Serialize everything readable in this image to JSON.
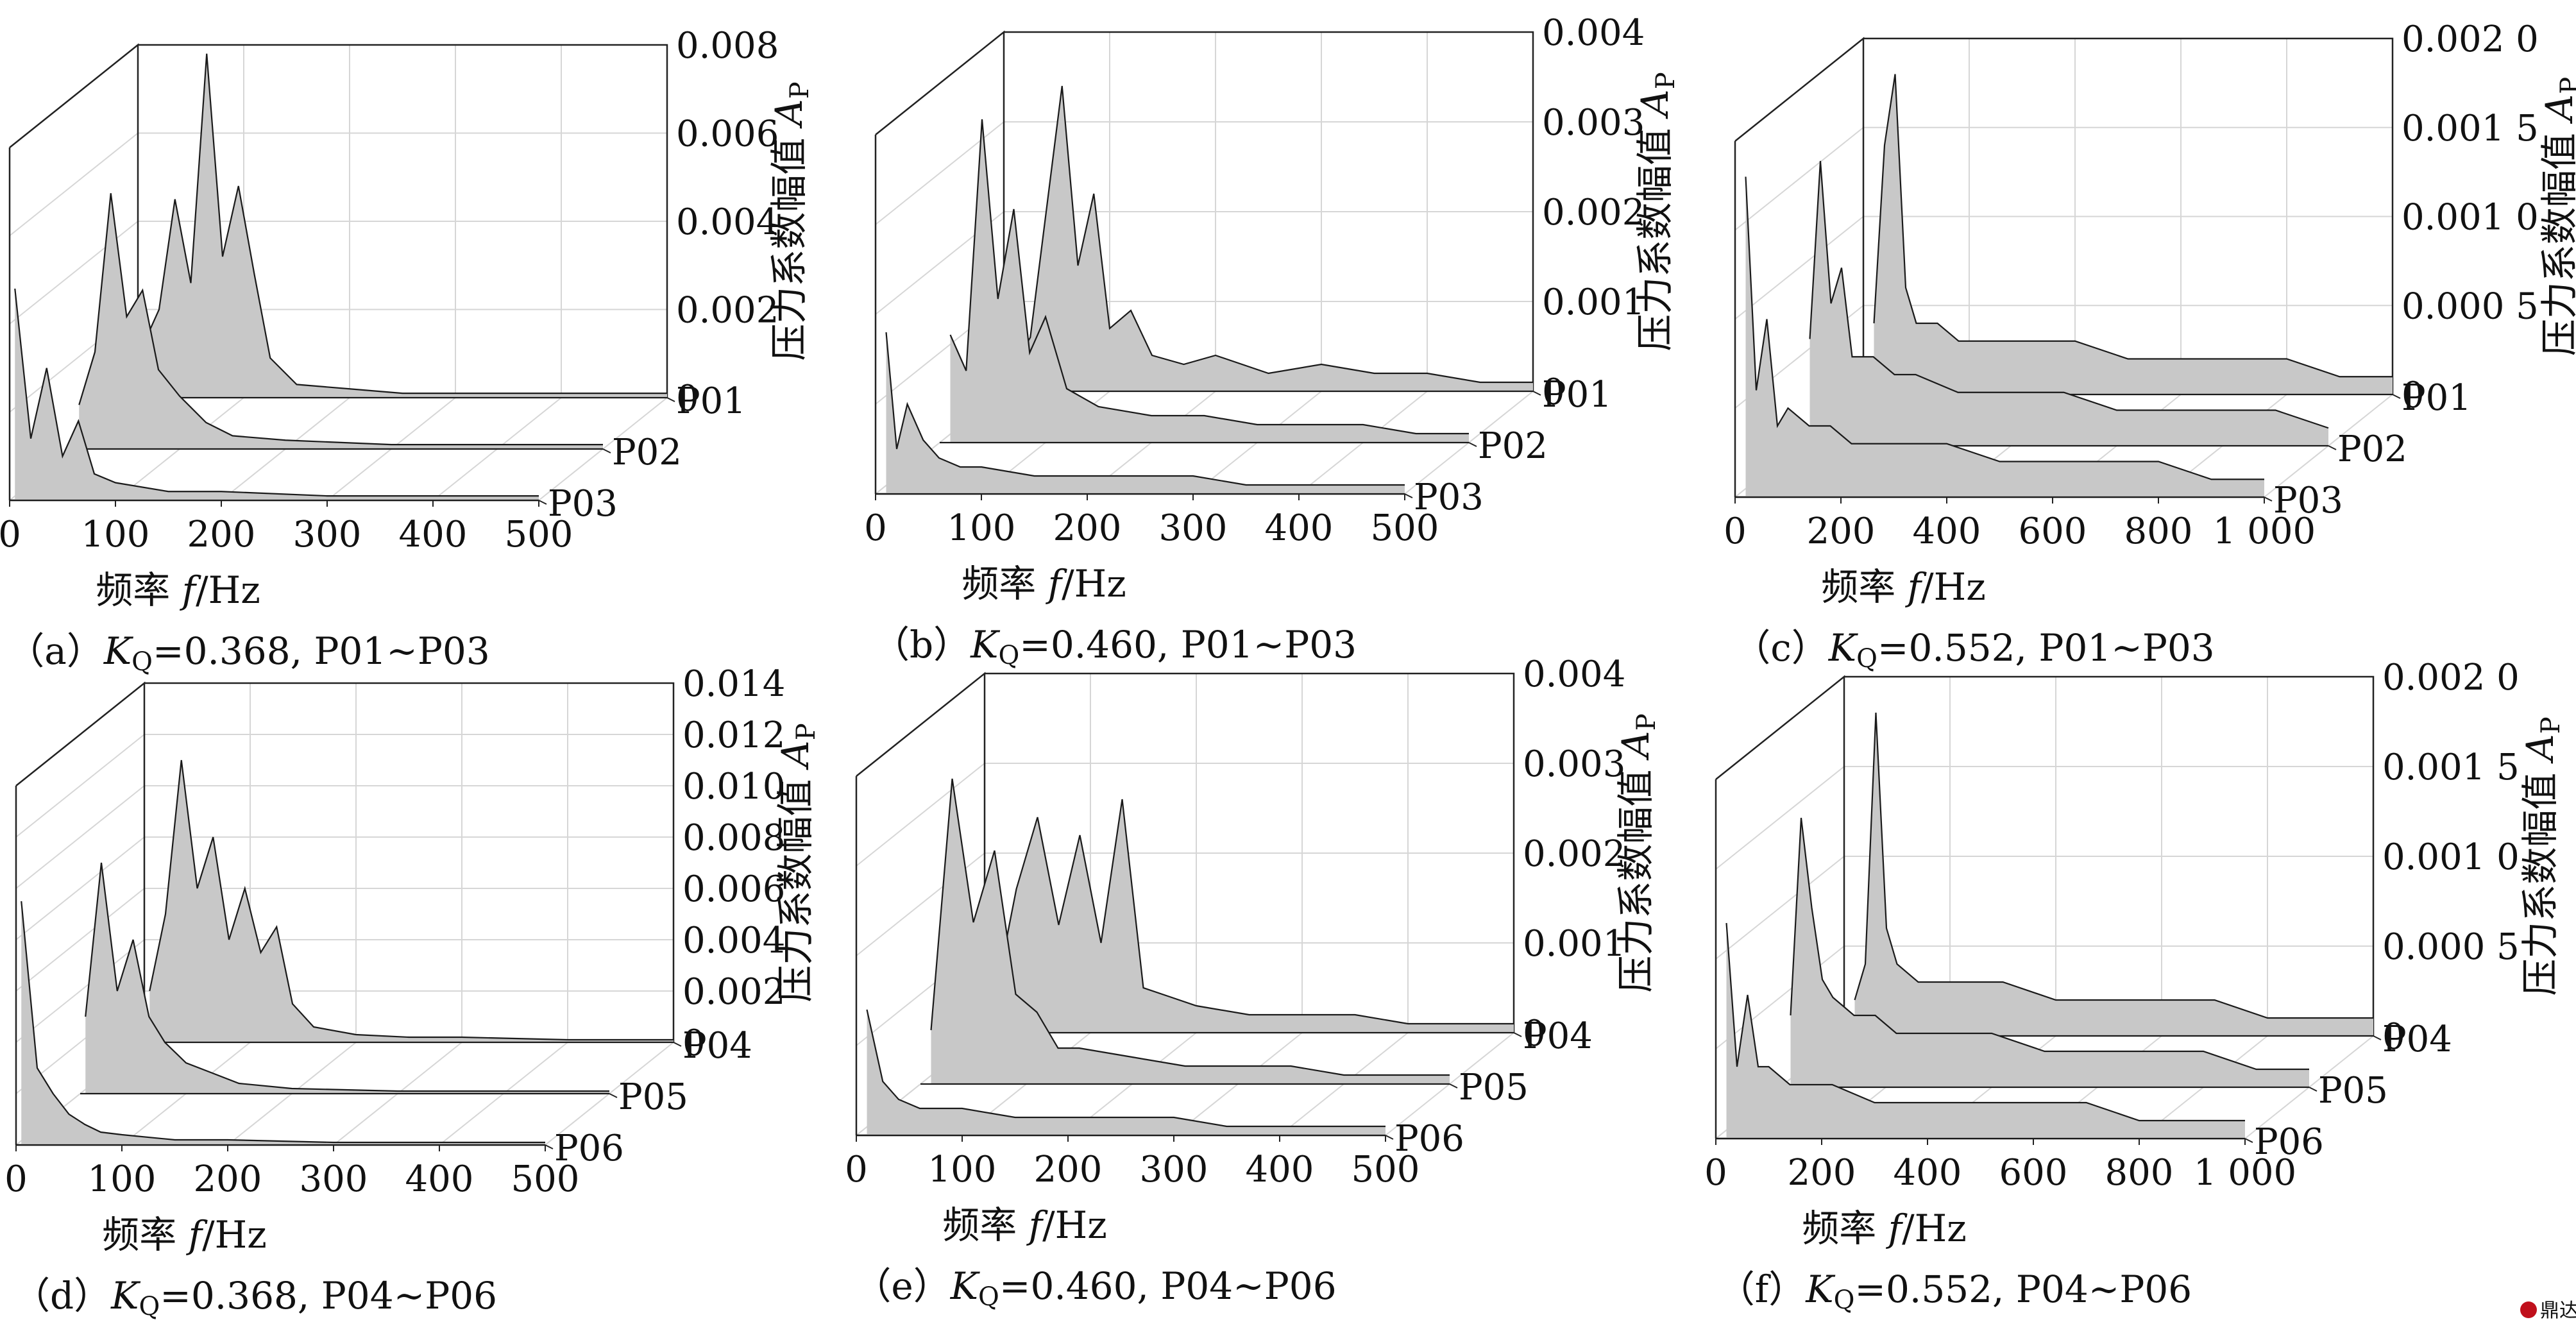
{
  "figure": {
    "colors": {
      "fill": "#c8c8c8",
      "line": "#1a1a1a",
      "grid": "#d6d6d6",
      "axis": "#222222",
      "watermark": "#c0101c"
    },
    "watermark": "鼎达信"
  },
  "chart_data": [
    {
      "id": "a",
      "type": "area",
      "caption_prefix": "（a）",
      "caption_kq": "K",
      "caption_kq_sub": "Q",
      "caption_rest": "=0.368, P01~P03",
      "xlabel_text": "频率",
      "xlabel_var": "f",
      "xlabel_unit": "/Hz",
      "ylabel_text": "压力系数幅值",
      "ylabel_var": "A",
      "ylabel_sub": "P",
      "xlim": [
        0,
        500
      ],
      "xticks": [
        "0",
        "100",
        "200",
        "300",
        "400",
        "500"
      ],
      "ylim": [
        0,
        0.008
      ],
      "yticks": [
        "0",
        "0.002",
        "0.004",
        "0.006",
        "0.008"
      ],
      "grid": true,
      "series": [
        {
          "name": "P01",
          "x": [
            5,
            20,
            35,
            50,
            65,
            80,
            95,
            110,
            125,
            150,
            200,
            250,
            300,
            400,
            500
          ],
          "values": [
            0.0012,
            0.002,
            0.0045,
            0.0026,
            0.0078,
            0.0032,
            0.0048,
            0.0028,
            0.0009,
            0.0003,
            0.0002,
            0.0001,
            0.0001,
            0.0001,
            0.0001
          ]
        },
        {
          "name": "P02",
          "x": [
            5,
            20,
            35,
            50,
            65,
            80,
            100,
            125,
            150,
            200,
            300,
            400,
            500
          ],
          "values": [
            0.001,
            0.0022,
            0.0058,
            0.003,
            0.0036,
            0.0018,
            0.0012,
            0.0006,
            0.0003,
            0.0002,
            0.0001,
            0.0001,
            0.0001
          ]
        },
        {
          "name": "P03",
          "x": [
            5,
            20,
            35,
            50,
            65,
            80,
            100,
            150,
            200,
            300,
            400,
            500
          ],
          "values": [
            0.0048,
            0.0014,
            0.003,
            0.001,
            0.0018,
            0.0006,
            0.0004,
            0.0002,
            0.0002,
            0.0001,
            0.0001,
            0.0001
          ]
        }
      ]
    },
    {
      "id": "b",
      "type": "area",
      "caption_prefix": "（b）",
      "caption_kq": "K",
      "caption_kq_sub": "Q",
      "caption_rest": "=0.460, P01~P03",
      "xlabel_text": "频率",
      "xlabel_var": "f",
      "xlabel_unit": "/Hz",
      "ylabel_text": "压力系数幅值",
      "ylabel_var": "A",
      "ylabel_sub": "P",
      "xlim": [
        0,
        500
      ],
      "xticks": [
        "0",
        "100",
        "200",
        "300",
        "400",
        "500"
      ],
      "ylim": [
        0,
        0.004
      ],
      "yticks": [
        "0",
        "0.001",
        "0.002",
        "0.003",
        "0.004"
      ],
      "grid": true,
      "series": [
        {
          "name": "P01",
          "x": [
            10,
            25,
            40,
            55,
            70,
            85,
            100,
            120,
            140,
            170,
            200,
            250,
            300,
            350,
            400,
            450,
            500
          ],
          "values": [
            0.0003,
            0.0006,
            0.002,
            0.0034,
            0.0014,
            0.0022,
            0.0007,
            0.0009,
            0.0004,
            0.0003,
            0.0004,
            0.0002,
            0.0003,
            0.0002,
            0.0002,
            0.0001,
            0.0001
          ]
        },
        {
          "name": "P02",
          "x": [
            10,
            25,
            40,
            55,
            70,
            85,
            100,
            120,
            150,
            200,
            250,
            300,
            350,
            400,
            450,
            500
          ],
          "values": [
            0.0012,
            0.0008,
            0.0036,
            0.0016,
            0.0026,
            0.001,
            0.0014,
            0.0006,
            0.0004,
            0.0003,
            0.0003,
            0.0002,
            0.0002,
            0.0002,
            0.0001,
            0.0001
          ]
        },
        {
          "name": "P03",
          "x": [
            10,
            20,
            30,
            45,
            60,
            80,
            100,
            150,
            200,
            250,
            300,
            350,
            400,
            450,
            500
          ],
          "values": [
            0.0018,
            0.0005,
            0.001,
            0.0006,
            0.0004,
            0.0003,
            0.0003,
            0.0002,
            0.0002,
            0.0002,
            0.0002,
            0.0001,
            0.0001,
            0.0001,
            0.0001
          ]
        }
      ]
    },
    {
      "id": "c",
      "type": "area",
      "caption_prefix": "（c）",
      "caption_kq": "K",
      "caption_kq_sub": "Q",
      "caption_rest": "=0.552, P01~P03",
      "xlabel_text": "频率",
      "xlabel_var": "f",
      "xlabel_unit": "/Hz",
      "ylabel_text": "压力系数幅值",
      "ylabel_var": "A",
      "ylabel_sub": "P",
      "xlim": [
        0,
        1000
      ],
      "xticks": [
        "0",
        "200",
        "400",
        "600",
        "800",
        "1 000"
      ],
      "ylim": [
        0,
        0.002
      ],
      "yticks": [
        "0",
        "0.000 5",
        "0.001 0",
        "0.001 5",
        "0.002 0"
      ],
      "grid": true,
      "series": [
        {
          "name": "P01",
          "x": [
            20,
            40,
            60,
            80,
            100,
            140,
            180,
            220,
            300,
            400,
            500,
            600,
            700,
            800,
            900,
            1000
          ],
          "values": [
            0.0004,
            0.0014,
            0.0018,
            0.0006,
            0.0004,
            0.0004,
            0.0003,
            0.0003,
            0.0003,
            0.0003,
            0.0002,
            0.0002,
            0.0002,
            0.0002,
            0.0001,
            0.0001
          ]
        },
        {
          "name": "P02",
          "x": [
            20,
            40,
            60,
            80,
            100,
            140,
            180,
            220,
            300,
            400,
            500,
            600,
            700,
            800,
            900,
            1000
          ],
          "values": [
            0.0006,
            0.0016,
            0.0008,
            0.001,
            0.0005,
            0.0005,
            0.0004,
            0.0004,
            0.0003,
            0.0003,
            0.0003,
            0.0002,
            0.0002,
            0.0002,
            0.0002,
            0.0001
          ]
        },
        {
          "name": "P03",
          "x": [
            20,
            40,
            60,
            80,
            100,
            140,
            180,
            220,
            300,
            400,
            500,
            600,
            700,
            800,
            900,
            1000
          ],
          "values": [
            0.0018,
            0.0006,
            0.001,
            0.0004,
            0.0005,
            0.0004,
            0.0004,
            0.0003,
            0.0003,
            0.0003,
            0.0002,
            0.0002,
            0.0002,
            0.0002,
            0.0001,
            0.0001
          ]
        }
      ]
    },
    {
      "id": "d",
      "type": "area",
      "caption_prefix": "（d）",
      "caption_kq": "K",
      "caption_kq_sub": "Q",
      "caption_rest": "=0.368, P04~P06",
      "xlabel_text": "频率",
      "xlabel_var": "f",
      "xlabel_unit": "/Hz",
      "ylabel_text": "压力系数幅值",
      "ylabel_var": "A",
      "ylabel_sub": "P",
      "xlim": [
        0,
        500
      ],
      "xticks": [
        "0",
        "100",
        "200",
        "300",
        "400",
        "500"
      ],
      "ylim": [
        0,
        0.014
      ],
      "yticks": [
        "0",
        "0.002",
        "0.004",
        "0.006",
        "0.008",
        "0.010",
        "0.012",
        "0.014"
      ],
      "grid": true,
      "series": [
        {
          "name": "P04",
          "x": [
            5,
            20,
            35,
            50,
            65,
            80,
            95,
            110,
            125,
            140,
            160,
            200,
            250,
            300,
            400,
            500
          ],
          "values": [
            0.002,
            0.005,
            0.011,
            0.006,
            0.008,
            0.004,
            0.006,
            0.0035,
            0.0045,
            0.0015,
            0.0006,
            0.0003,
            0.0002,
            0.0002,
            0.0001,
            0.0001
          ]
        },
        {
          "name": "P05",
          "x": [
            5,
            20,
            35,
            50,
            65,
            80,
            100,
            125,
            150,
            200,
            300,
            400,
            500
          ],
          "values": [
            0.003,
            0.009,
            0.004,
            0.006,
            0.003,
            0.002,
            0.0012,
            0.0008,
            0.0004,
            0.0002,
            0.0001,
            0.0001,
            0.0001
          ]
        },
        {
          "name": "P06",
          "x": [
            5,
            20,
            35,
            50,
            65,
            80,
            100,
            150,
            200,
            300,
            400,
            500
          ],
          "values": [
            0.0095,
            0.003,
            0.002,
            0.0012,
            0.0008,
            0.0005,
            0.0004,
            0.0002,
            0.0002,
            0.0001,
            0.0001,
            0.0001
          ]
        }
      ]
    },
    {
      "id": "e",
      "type": "area",
      "caption_prefix": "（e）",
      "caption_kq": "K",
      "caption_kq_sub": "Q",
      "caption_rest": "=0.460, P04~P06",
      "xlabel_text": "频率",
      "xlabel_var": "f",
      "xlabel_unit": "/Hz",
      "ylabel_text": "压力系数幅值",
      "ylabel_var": "A",
      "ylabel_sub": "P",
      "xlim": [
        0,
        500
      ],
      "xticks": [
        "0",
        "100",
        "200",
        "300",
        "400",
        "500"
      ],
      "ylim": [
        0,
        0.004
      ],
      "yticks": [
        "0",
        "0.001",
        "0.002",
        "0.003",
        "0.004"
      ],
      "grid": true,
      "series": [
        {
          "name": "P04",
          "x": [
            10,
            30,
            50,
            70,
            90,
            110,
            130,
            150,
            175,
            200,
            250,
            300,
            350,
            400,
            450,
            500
          ],
          "values": [
            0.0004,
            0.0016,
            0.0024,
            0.0012,
            0.0022,
            0.001,
            0.0026,
            0.0005,
            0.0004,
            0.0003,
            0.0002,
            0.0002,
            0.0002,
            0.0001,
            0.0001,
            0.0001
          ]
        },
        {
          "name": "P05",
          "x": [
            10,
            30,
            50,
            70,
            90,
            110,
            130,
            150,
            200,
            250,
            300,
            350,
            400,
            450,
            500
          ],
          "values": [
            0.0006,
            0.0034,
            0.0018,
            0.0026,
            0.001,
            0.0008,
            0.0004,
            0.0004,
            0.0003,
            0.0002,
            0.0002,
            0.0002,
            0.0001,
            0.0001,
            0.0001
          ]
        },
        {
          "name": "P06",
          "x": [
            10,
            25,
            40,
            60,
            80,
            100,
            150,
            200,
            250,
            300,
            350,
            400,
            450,
            500
          ],
          "values": [
            0.0014,
            0.0006,
            0.0004,
            0.0003,
            0.0003,
            0.0003,
            0.0002,
            0.0002,
            0.0002,
            0.0002,
            0.0001,
            0.0001,
            0.0001,
            0.0001
          ]
        }
      ]
    },
    {
      "id": "f",
      "type": "area",
      "caption_prefix": "（f）",
      "caption_kq": "K",
      "caption_kq_sub": "Q",
      "caption_rest": "=0.552, P04~P06",
      "xlabel_text": "频率",
      "xlabel_var": "f",
      "xlabel_unit": "/Hz",
      "ylabel_text": "压力系数幅值",
      "ylabel_var": "A",
      "ylabel_sub": "P",
      "xlim": [
        0,
        1000
      ],
      "xticks": [
        "0",
        "200",
        "400",
        "600",
        "800",
        "1 000"
      ],
      "ylim": [
        0,
        0.002
      ],
      "yticks": [
        "0",
        "0.000 5",
        "0.001 0",
        "0.001 5",
        "0.002 0"
      ],
      "grid": true,
      "series": [
        {
          "name": "P04",
          "x": [
            20,
            40,
            60,
            80,
            100,
            140,
            180,
            220,
            300,
            400,
            500,
            600,
            700,
            800,
            900,
            1000
          ],
          "values": [
            0.0002,
            0.0004,
            0.0018,
            0.0006,
            0.0004,
            0.0003,
            0.0003,
            0.0003,
            0.0003,
            0.0002,
            0.0002,
            0.0002,
            0.0002,
            0.0001,
            0.0001,
            0.0001
          ]
        },
        {
          "name": "P05",
          "x": [
            20,
            40,
            60,
            80,
            100,
            140,
            180,
            220,
            300,
            400,
            500,
            600,
            700,
            800,
            900,
            1000
          ],
          "values": [
            0.0004,
            0.0015,
            0.001,
            0.0006,
            0.0005,
            0.0004,
            0.0004,
            0.0003,
            0.0003,
            0.0003,
            0.0002,
            0.0002,
            0.0002,
            0.0002,
            0.0001,
            0.0001
          ]
        },
        {
          "name": "P06",
          "x": [
            20,
            40,
            60,
            80,
            100,
            140,
            180,
            220,
            300,
            400,
            500,
            600,
            700,
            800,
            900,
            1000
          ],
          "values": [
            0.0012,
            0.0004,
            0.0008,
            0.0004,
            0.0004,
            0.0003,
            0.0003,
            0.0003,
            0.0002,
            0.0002,
            0.0002,
            0.0002,
            0.0002,
            0.0001,
            0.0001,
            0.0001
          ]
        }
      ]
    }
  ]
}
